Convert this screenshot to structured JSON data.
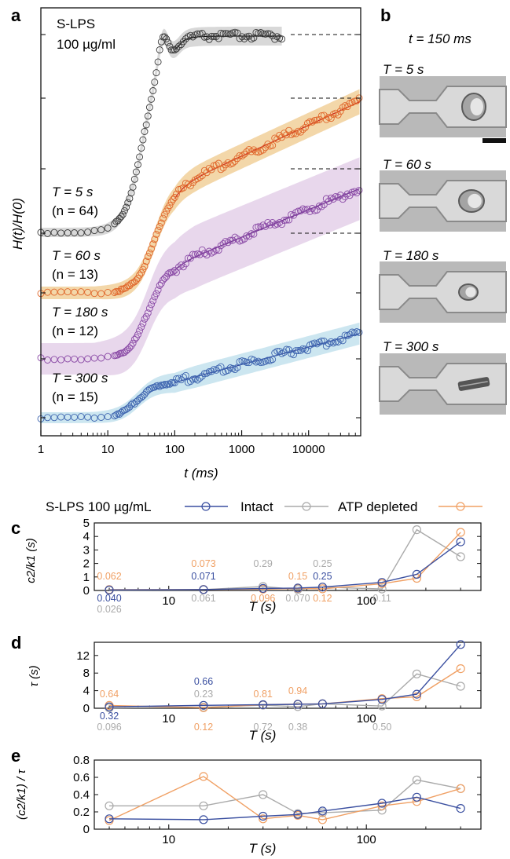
{
  "panel_labels": {
    "a": "a",
    "b": "b",
    "c": "c",
    "d": "d",
    "e": "e"
  },
  "colors": {
    "t5": "#3a3a3a",
    "t60": "#e0682c",
    "t180": "#8a4aa6",
    "t300": "#3f66b0",
    "band5": "#d4d4d4",
    "band60": "#f2d3a0",
    "band180": "#e6d3ea",
    "band300": "#c7e3ee",
    "fit5": "#111111",
    "fit60": "#cc2a1f",
    "fit180": "#6a2e8a",
    "fit300": "#3a4fa0",
    "s_lps": "#3a4fa0",
    "intact": "#aaaaaa",
    "atp": "#f0a064"
  },
  "panel_a": {
    "condition_line1": "S-LPS",
    "condition_line2": "100 µg/ml",
    "ylabel": "H(t)/H(0)",
    "xlabel": "t (ms)",
    "series_labels": [
      {
        "line1": "T = 5 s",
        "line2": "(n = 64)"
      },
      {
        "line1": "T = 60 s",
        "line2": "(n = 13)"
      },
      {
        "line1": "T = 180 s",
        "line2": "(n = 12)"
      },
      {
        "line1": "T = 300 s",
        "line2": "(n = 15)"
      }
    ]
  },
  "panel_b": {
    "time_label": "t = 150 ms",
    "frames": [
      "T = 5 s",
      "T = 60 s",
      "T = 180 s",
      "T = 300 s"
    ]
  },
  "legend": {
    "s_lps": "S-LPS 100 µg/mL",
    "intact": "Intact",
    "atp": "ATP depleted"
  },
  "chart_data": [
    {
      "type": "scatter",
      "panel": "a",
      "xscale": "log",
      "xlim": [
        1,
        60000
      ],
      "xticks": [
        "1",
        "10",
        "100",
        "1000",
        "10000"
      ],
      "xlabel": "t (ms)",
      "ylabel": "H(t)/H(0)",
      "series": [
        {
          "name": "T = 5 s (n = 64)",
          "offset": 0,
          "rise_center_ms": 35,
          "plateau": 1.0,
          "overshoot": true,
          "tmax_ms": 4000
        },
        {
          "name": "T = 60 s (n = 13)",
          "offset": 1,
          "rise_center_ms": 50,
          "plateau": 0.55,
          "tmax_ms": 60000
        },
        {
          "name": "T = 180 s (n = 12)",
          "offset": 2,
          "rise_center_ms": 40,
          "plateau": 0.55,
          "tmax_ms": 60000
        },
        {
          "name": "T = 300 s (n = 15)",
          "offset": 3,
          "rise_center_ms": 28,
          "plateau": 0.42,
          "tmax_ms": 60000
        }
      ]
    },
    {
      "type": "line",
      "panel": "c",
      "xscale": "log",
      "ylabel": "c2/k1 (s)",
      "xlabel": "T (s)",
      "ylim": [
        0,
        5
      ],
      "yticks": [
        "0",
        "1",
        "2",
        "3",
        "4",
        "5"
      ],
      "xticks": [
        "10",
        "100"
      ],
      "x": [
        5,
        15,
        30,
        45,
        60,
        120,
        180,
        300
      ],
      "series": [
        {
          "name": "S-LPS 100 µg/mL",
          "color_key": "s_lps",
          "values": [
            0.04,
            0.071,
            0.15,
            0.18,
            0.25,
            0.6,
            1.2,
            3.6
          ]
        },
        {
          "name": "Intact",
          "color_key": "intact",
          "values": [
            0.026,
            0.061,
            0.29,
            0.07,
            0.25,
            0.11,
            4.5,
            2.5
          ]
        },
        {
          "name": "ATP depleted",
          "color_key": "atp",
          "values": [
            0.062,
            0.073,
            0.096,
            0.15,
            0.12,
            0.5,
            0.9,
            4.3
          ]
        }
      ],
      "annotations": [
        {
          "text": "0.062",
          "x": 5,
          "pos": "above",
          "color_key": "atp"
        },
        {
          "text": "0.040",
          "x": 5,
          "pos": "below1",
          "color_key": "s_lps"
        },
        {
          "text": "0.026",
          "x": 5,
          "pos": "below2",
          "color_key": "intact"
        },
        {
          "text": "0.073",
          "x": 15,
          "pos": "above2",
          "color_key": "atp"
        },
        {
          "text": "0.071",
          "x": 15,
          "pos": "above",
          "color_key": "s_lps"
        },
        {
          "text": "0.061",
          "x": 15,
          "pos": "below1",
          "color_key": "intact"
        },
        {
          "text": "0.29",
          "x": 30,
          "pos": "above2",
          "color_key": "intact"
        },
        {
          "text": "0.096",
          "x": 30,
          "pos": "below1",
          "color_key": "atp"
        },
        {
          "text": "0.15",
          "x": 45,
          "pos": "above",
          "color_key": "atp"
        },
        {
          "text": "0.070",
          "x": 45,
          "pos": "below1",
          "color_key": "intact"
        },
        {
          "text": "0.25",
          "x": 60,
          "pos": "above2",
          "color_key": "intact"
        },
        {
          "text": "0.25",
          "x": 60,
          "pos": "above",
          "color_key": "s_lps"
        },
        {
          "text": "0.12",
          "x": 60,
          "pos": "below1",
          "color_key": "atp"
        },
        {
          "text": "0.11",
          "x": 120,
          "pos": "below1",
          "color_key": "intact"
        }
      ]
    },
    {
      "type": "line",
      "panel": "d",
      "xscale": "log",
      "ylabel": "τ (s)",
      "xlabel": "T (s)",
      "ylim": [
        0,
        15
      ],
      "yticks": [
        "0",
        "4",
        "8",
        "12"
      ],
      "xticks": [
        "10",
        "100"
      ],
      "x": [
        5,
        15,
        30,
        45,
        60,
        120,
        180,
        300
      ],
      "series": [
        {
          "name": "S-LPS 100 µg/mL",
          "color_key": "s_lps",
          "values": [
            0.32,
            0.66,
            0.8,
            0.9,
            1.0,
            2.0,
            3.2,
            14.5
          ]
        },
        {
          "name": "Intact",
          "color_key": "intact",
          "values": [
            0.096,
            0.23,
            0.72,
            0.38,
            1.0,
            0.5,
            7.8,
            5.0
          ]
        },
        {
          "name": "ATP depleted",
          "color_key": "atp",
          "values": [
            0.64,
            0.12,
            0.81,
            0.94,
            1.0,
            2.2,
            2.6,
            9.0
          ]
        }
      ],
      "annotations": [
        {
          "text": "0.64",
          "x": 5,
          "pos": "above",
          "color_key": "atp"
        },
        {
          "text": "0.32",
          "x": 5,
          "pos": "below1",
          "color_key": "s_lps"
        },
        {
          "text": "0.096",
          "x": 5,
          "pos": "below2",
          "color_key": "intact"
        },
        {
          "text": "0.66",
          "x": 15,
          "pos": "above2",
          "color_key": "s_lps"
        },
        {
          "text": "0.23",
          "x": 15,
          "pos": "above",
          "color_key": "intact"
        },
        {
          "text": "0.12",
          "x": 15,
          "pos": "below2",
          "color_key": "atp"
        },
        {
          "text": "0.81",
          "x": 30,
          "pos": "above",
          "color_key": "atp"
        },
        {
          "text": "0.72",
          "x": 30,
          "pos": "below2",
          "color_key": "intact"
        },
        {
          "text": "0.94",
          "x": 45,
          "pos": "above1",
          "color_key": "atp"
        },
        {
          "text": "0.38",
          "x": 45,
          "pos": "below2",
          "color_key": "intact"
        },
        {
          "text": "0.50",
          "x": 120,
          "pos": "below2",
          "color_key": "intact"
        }
      ]
    },
    {
      "type": "line",
      "panel": "e",
      "xscale": "log",
      "ylabel": "(c2/k1) / τ",
      "xlabel": "T (s)",
      "ylim": [
        0,
        0.8
      ],
      "yticks": [
        "0",
        "0.2",
        "0.4",
        "0.6",
        "0.8"
      ],
      "xticks": [
        "10",
        "100"
      ],
      "x": [
        5,
        15,
        30,
        45,
        60,
        120,
        180,
        300
      ],
      "series": [
        {
          "name": "S-LPS 100 µg/mL",
          "color_key": "s_lps",
          "values": [
            0.12,
            0.11,
            0.15,
            0.17,
            0.21,
            0.3,
            0.37,
            0.24
          ]
        },
        {
          "name": "Intact",
          "color_key": "intact",
          "values": [
            0.27,
            0.27,
            0.4,
            0.18,
            0.19,
            0.22,
            0.57,
            0.47
          ]
        },
        {
          "name": "ATP depleted",
          "color_key": "atp",
          "values": [
            0.1,
            0.61,
            0.12,
            0.16,
            0.11,
            0.27,
            0.32,
            0.47
          ]
        }
      ]
    }
  ]
}
